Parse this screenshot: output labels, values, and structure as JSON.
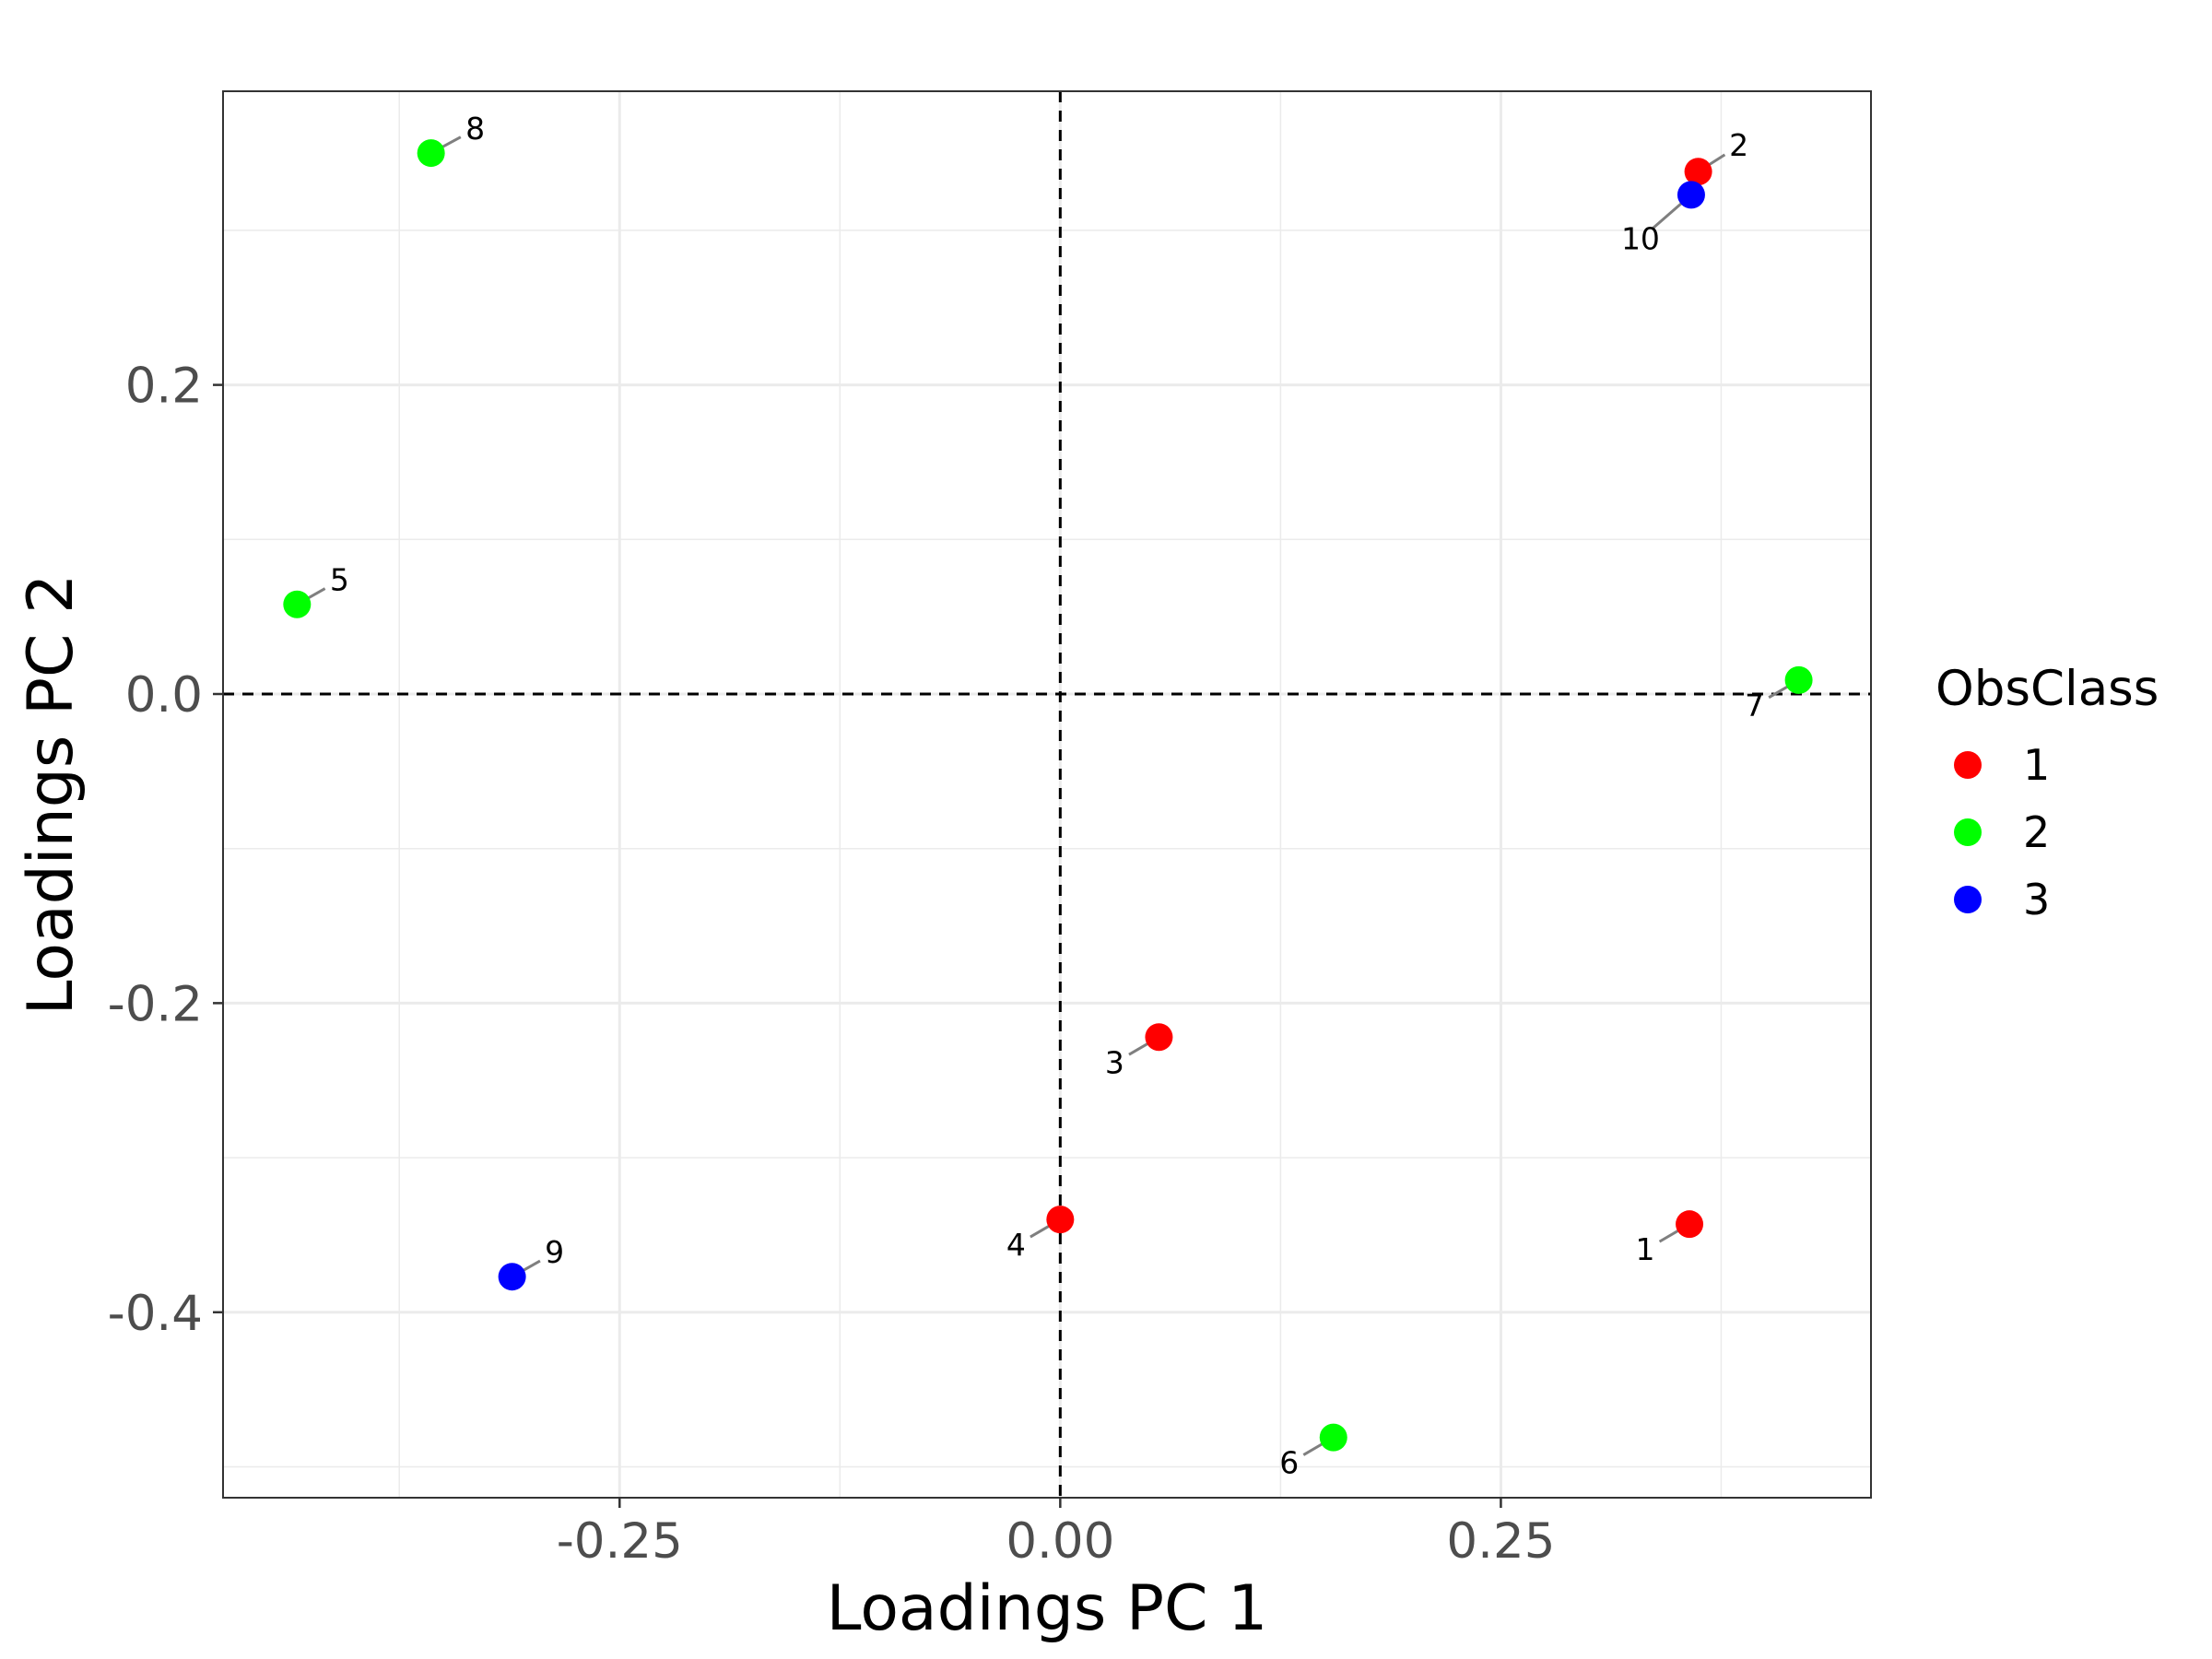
{
  "chart_data": {
    "type": "scatter",
    "xlabel": "Loadings PC 1",
    "ylabel": "Loadings PC 2",
    "xlim": [
      -0.475,
      0.46
    ],
    "ylim": [
      -0.52,
      0.39
    ],
    "x_major_ticks": [
      -0.25,
      0.0,
      0.25
    ],
    "x_tick_labels": [
      "-0.25",
      "0.00",
      "0.25"
    ],
    "x_minor_ticks": [
      -0.375,
      -0.125,
      0.125,
      0.375
    ],
    "y_major_ticks": [
      -0.4,
      -0.2,
      0.0,
      0.2
    ],
    "y_tick_labels": [
      "-0.4",
      "-0.2",
      "0.0",
      "0.2"
    ],
    "y_minor_ticks": [
      -0.5,
      -0.3,
      -0.1,
      0.1,
      0.3
    ],
    "grid": true,
    "reference_lines": {
      "x": 0,
      "y": 0,
      "style": "dashed"
    },
    "legend": {
      "title": "ObsClass",
      "position": "right",
      "entries": [
        {
          "label": "1",
          "color": "#FF0000"
        },
        {
          "label": "2",
          "color": "#00FF00"
        },
        {
          "label": "3",
          "color": "#0000FF"
        }
      ]
    },
    "points": [
      {
        "label": "1",
        "x": 0.357,
        "y": -0.343,
        "class": "1"
      },
      {
        "label": "2",
        "x": 0.362,
        "y": 0.338,
        "class": "1"
      },
      {
        "label": "3",
        "x": 0.056,
        "y": -0.222,
        "class": "1"
      },
      {
        "label": "4",
        "x": 0.0,
        "y": -0.34,
        "class": "1"
      },
      {
        "label": "5",
        "x": -0.433,
        "y": 0.058,
        "class": "2"
      },
      {
        "label": "6",
        "x": 0.155,
        "y": -0.481,
        "class": "2"
      },
      {
        "label": "7",
        "x": 0.419,
        "y": 0.009,
        "class": "2"
      },
      {
        "label": "8",
        "x": -0.357,
        "y": 0.35,
        "class": "2"
      },
      {
        "label": "9",
        "x": -0.311,
        "y": -0.377,
        "class": "3"
      },
      {
        "label": "10",
        "x": 0.358,
        "y": 0.323,
        "class": "3"
      }
    ]
  }
}
